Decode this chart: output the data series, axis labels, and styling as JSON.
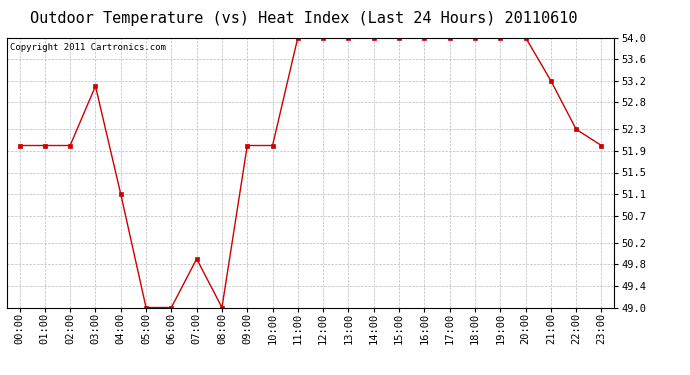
{
  "title": "Outdoor Temperature (vs) Heat Index (Last 24 Hours) 20110610",
  "copyright": "Copyright 2011 Cartronics.com",
  "x_labels": [
    "00:00",
    "01:00",
    "02:00",
    "03:00",
    "04:00",
    "05:00",
    "06:00",
    "07:00",
    "08:00",
    "09:00",
    "10:00",
    "11:00",
    "12:00",
    "13:00",
    "14:00",
    "15:00",
    "16:00",
    "17:00",
    "18:00",
    "19:00",
    "20:00",
    "21:00",
    "22:00",
    "23:00"
  ],
  "y_values": [
    52.0,
    52.0,
    52.0,
    53.1,
    51.1,
    49.0,
    49.0,
    49.9,
    49.0,
    52.0,
    52.0,
    54.0,
    54.0,
    54.0,
    54.0,
    54.0,
    54.0,
    54.0,
    54.0,
    54.0,
    54.0,
    53.2,
    52.3,
    52.0
  ],
  "ylim_min": 49.0,
  "ylim_max": 54.0,
  "yticks": [
    49.0,
    49.4,
    49.8,
    50.2,
    50.7,
    51.1,
    51.5,
    51.9,
    52.3,
    52.8,
    53.2,
    53.6,
    54.0
  ],
  "line_color": "#cc0000",
  "marker": "s",
  "marker_size": 2.5,
  "bg_color": "#ffffff",
  "plot_bg_color": "#ffffff",
  "grid_color": "#aaaaaa",
  "title_fontsize": 11,
  "copyright_fontsize": 6.5,
  "tick_fontsize": 7.5
}
